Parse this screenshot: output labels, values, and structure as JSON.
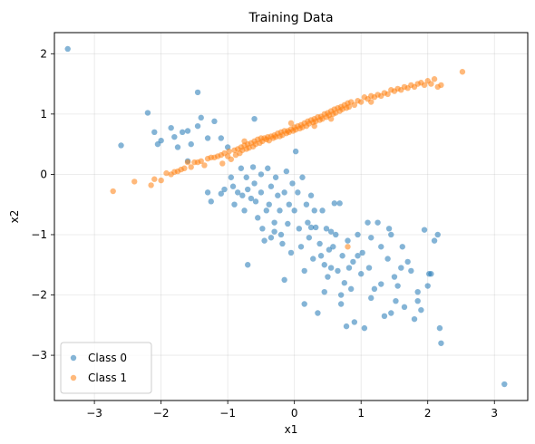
{
  "chart_data": {
    "type": "scatter",
    "title": "Training Data",
    "xlabel": "x1",
    "ylabel": "x2",
    "xlim": [
      -3.6,
      3.5
    ],
    "ylim": [
      -3.75,
      2.35
    ],
    "xticks": [
      -3,
      -2,
      -1,
      0,
      1,
      2,
      3
    ],
    "yticks": [
      -3,
      -2,
      -1,
      0,
      1,
      2
    ],
    "grid": true,
    "legend_position": "lower-left",
    "series": [
      {
        "name": "Class 0",
        "color": "#1f77b4",
        "points": [
          [
            -3.4,
            2.08
          ],
          [
            -2.6,
            0.48
          ],
          [
            -2.2,
            1.02
          ],
          [
            -2.1,
            0.7
          ],
          [
            -2.05,
            0.5
          ],
          [
            -2.0,
            0.56
          ],
          [
            -1.85,
            0.77
          ],
          [
            -1.8,
            0.62
          ],
          [
            -1.75,
            0.45
          ],
          [
            -1.68,
            0.7
          ],
          [
            -1.6,
            0.72
          ],
          [
            -1.55,
            0.5
          ],
          [
            -1.45,
            1.36
          ],
          [
            -1.4,
            0.94
          ],
          [
            -1.45,
            0.8
          ],
          [
            -1.3,
            0.6
          ],
          [
            -1.2,
            0.88
          ],
          [
            -1.1,
            0.6
          ],
          [
            -1.0,
            0.45
          ],
          [
            -1.6,
            0.22
          ],
          [
            -1.3,
            -0.3
          ],
          [
            -1.25,
            -0.45
          ],
          [
            -1.1,
            -0.32
          ],
          [
            -1.05,
            -0.25
          ],
          [
            -0.95,
            -0.05
          ],
          [
            -0.92,
            -0.2
          ],
          [
            -0.9,
            -0.5
          ],
          [
            -0.85,
            -0.3
          ],
          [
            -0.8,
            0.1
          ],
          [
            -0.78,
            -0.35
          ],
          [
            -0.75,
            -0.6
          ],
          [
            -0.72,
            -0.05
          ],
          [
            -0.7,
            -0.25
          ],
          [
            -0.65,
            -0.4
          ],
          [
            -0.6,
            0.92
          ],
          [
            -0.62,
            0.12
          ],
          [
            -0.6,
            -0.15
          ],
          [
            -0.58,
            -0.45
          ],
          [
            -0.55,
            -0.72
          ],
          [
            -0.5,
            0.0
          ],
          [
            -0.5,
            -0.3
          ],
          [
            -0.48,
            -0.9
          ],
          [
            -0.45,
            -1.1
          ],
          [
            -0.42,
            -0.6
          ],
          [
            -0.4,
            0.1
          ],
          [
            -0.38,
            -0.5
          ],
          [
            -0.35,
            -0.2
          ],
          [
            -0.3,
            -0.8
          ],
          [
            -0.28,
            -0.05
          ],
          [
            -0.25,
            -0.35
          ],
          [
            -0.22,
            -0.6
          ],
          [
            -0.2,
            -1.0
          ],
          [
            -0.18,
            -1.15
          ],
          [
            -0.15,
            -0.3
          ],
          [
            -0.12,
            0.05
          ],
          [
            -0.1,
            -0.82
          ],
          [
            -0.08,
            -0.5
          ],
          [
            -0.05,
            -1.3
          ],
          [
            -0.03,
            -0.15
          ],
          [
            0.0,
            -0.6
          ],
          [
            0.02,
            0.38
          ],
          [
            0.05,
            -0.3
          ],
          [
            0.07,
            -0.9
          ],
          [
            0.1,
            -1.2
          ],
          [
            0.12,
            -0.05
          ],
          [
            0.15,
            -1.6
          ],
          [
            0.18,
            -0.5
          ],
          [
            0.2,
            -0.8
          ],
          [
            0.22,
            -1.05
          ],
          [
            0.25,
            -0.35
          ],
          [
            0.28,
            -1.4
          ],
          [
            0.3,
            -0.6
          ],
          [
            0.32,
            -0.88
          ],
          [
            0.35,
            -2.3
          ],
          [
            0.38,
            -1.15
          ],
          [
            0.4,
            -1.35
          ],
          [
            0.42,
            -0.6
          ],
          [
            0.45,
            -1.5
          ],
          [
            0.48,
            -0.9
          ],
          [
            0.5,
            -1.7
          ],
          [
            0.52,
            -1.25
          ],
          [
            0.55,
            -1.55
          ],
          [
            0.58,
            -1.2
          ],
          [
            0.6,
            -0.48
          ],
          [
            0.62,
            -1.0
          ],
          [
            0.65,
            -1.6
          ],
          [
            0.68,
            -0.48
          ],
          [
            0.7,
            -2.0
          ],
          [
            0.72,
            -1.35
          ],
          [
            0.75,
            -1.8
          ],
          [
            0.78,
            -2.52
          ],
          [
            0.8,
            -1.1
          ],
          [
            0.82,
            -1.55
          ],
          [
            0.85,
            -1.9
          ],
          [
            0.88,
            -1.45
          ],
          [
            0.9,
            -2.45
          ],
          [
            0.95,
            -1.0
          ],
          [
            1.0,
            -1.65
          ],
          [
            1.02,
            -1.3
          ],
          [
            1.05,
            -2.55
          ],
          [
            1.1,
            -0.8
          ],
          [
            1.12,
            -1.55
          ],
          [
            1.15,
            -2.05
          ],
          [
            1.2,
            -1.9
          ],
          [
            1.25,
            -0.8
          ],
          [
            1.3,
            -1.2
          ],
          [
            1.35,
            -2.35
          ],
          [
            1.4,
            -1.4
          ],
          [
            1.42,
            -0.9
          ],
          [
            1.45,
            -1.0
          ],
          [
            1.5,
            -1.7
          ],
          [
            1.52,
            -2.1
          ],
          [
            1.55,
            -1.85
          ],
          [
            1.6,
            -1.55
          ],
          [
            1.65,
            -2.2
          ],
          [
            1.7,
            -1.45
          ],
          [
            1.75,
            -1.6
          ],
          [
            1.8,
            -2.4
          ],
          [
            1.85,
            -2.1
          ],
          [
            1.9,
            -2.25
          ],
          [
            1.95,
            -0.92
          ],
          [
            2.0,
            -1.85
          ],
          [
            2.05,
            -1.65
          ],
          [
            2.1,
            -1.1
          ],
          [
            2.15,
            -1.0
          ],
          [
            2.18,
            -2.55
          ],
          [
            2.2,
            -2.8
          ],
          [
            3.15,
            -3.48
          ],
          [
            -0.35,
            -1.05
          ],
          [
            0.25,
            -0.88
          ],
          [
            1.3,
            -1.82
          ],
          [
            0.45,
            -1.95
          ],
          [
            -0.7,
            -1.5
          ],
          [
            1.62,
            -1.2
          ],
          [
            0.95,
            -1.35
          ],
          [
            1.85,
            -1.95
          ],
          [
            0.15,
            -2.15
          ],
          [
            -0.15,
            -1.75
          ],
          [
            1.15,
            -1.05
          ],
          [
            0.55,
            -0.95
          ],
          [
            -0.3,
            -0.95
          ],
          [
            1.45,
            -2.3
          ],
          [
            2.02,
            -1.65
          ],
          [
            0.7,
            -2.15
          ]
        ]
      },
      {
        "name": "Class 1",
        "color": "#ff7f0e",
        "points": [
          [
            -2.72,
            -0.28
          ],
          [
            -2.4,
            -0.12
          ],
          [
            -2.15,
            -0.18
          ],
          [
            -2.1,
            -0.08
          ],
          [
            -2.0,
            -0.1
          ],
          [
            -1.92,
            0.02
          ],
          [
            -1.85,
            0.0
          ],
          [
            -1.8,
            0.04
          ],
          [
            -1.75,
            0.05
          ],
          [
            -1.7,
            0.08
          ],
          [
            -1.65,
            0.1
          ],
          [
            -1.6,
            0.2
          ],
          [
            -1.55,
            0.12
          ],
          [
            -1.5,
            0.2
          ],
          [
            -1.45,
            0.2
          ],
          [
            -1.4,
            0.22
          ],
          [
            -1.35,
            0.15
          ],
          [
            -1.3,
            0.26
          ],
          [
            -1.25,
            0.28
          ],
          [
            -1.2,
            0.28
          ],
          [
            -1.15,
            0.3
          ],
          [
            -1.1,
            0.32
          ],
          [
            -1.08,
            0.18
          ],
          [
            -1.05,
            0.35
          ],
          [
            -1.0,
            0.3
          ],
          [
            -0.98,
            0.38
          ],
          [
            -0.95,
            0.25
          ],
          [
            -0.9,
            0.4
          ],
          [
            -0.88,
            0.32
          ],
          [
            -0.85,
            0.42
          ],
          [
            -0.82,
            0.35
          ],
          [
            -0.8,
            0.45
          ],
          [
            -0.78,
            0.4
          ],
          [
            -0.75,
            0.48
          ],
          [
            -0.72,
            0.42
          ],
          [
            -0.7,
            0.5
          ],
          [
            -0.68,
            0.44
          ],
          [
            -0.65,
            0.52
          ],
          [
            -0.62,
            0.46
          ],
          [
            -0.6,
            0.55
          ],
          [
            -0.58,
            0.5
          ],
          [
            -0.55,
            0.58
          ],
          [
            -0.52,
            0.52
          ],
          [
            -0.5,
            0.6
          ],
          [
            -0.48,
            0.55
          ],
          [
            -0.45,
            0.6
          ],
          [
            -0.42,
            0.58
          ],
          [
            -0.4,
            0.62
          ],
          [
            -0.38,
            0.56
          ],
          [
            -0.35,
            0.63
          ],
          [
            -0.32,
            0.6
          ],
          [
            -0.3,
            0.65
          ],
          [
            -0.28,
            0.62
          ],
          [
            -0.25,
            0.68
          ],
          [
            -0.22,
            0.63
          ],
          [
            -0.2,
            0.7
          ],
          [
            -0.18,
            0.65
          ],
          [
            -0.15,
            0.72
          ],
          [
            -0.12,
            0.68
          ],
          [
            -0.1,
            0.72
          ],
          [
            -0.08,
            0.7
          ],
          [
            -0.05,
            0.75
          ],
          [
            -0.02,
            0.72
          ],
          [
            0.0,
            0.78
          ],
          [
            0.02,
            0.74
          ],
          [
            0.05,
            0.8
          ],
          [
            0.08,
            0.76
          ],
          [
            0.1,
            0.82
          ],
          [
            0.12,
            0.78
          ],
          [
            0.15,
            0.85
          ],
          [
            0.18,
            0.8
          ],
          [
            0.2,
            0.88
          ],
          [
            0.22,
            0.84
          ],
          [
            0.25,
            0.9
          ],
          [
            0.28,
            0.86
          ],
          [
            0.3,
            0.92
          ],
          [
            0.32,
            0.88
          ],
          [
            0.35,
            0.95
          ],
          [
            0.38,
            0.9
          ],
          [
            0.4,
            0.96
          ],
          [
            0.42,
            0.92
          ],
          [
            0.45,
            1.0
          ],
          [
            0.48,
            0.95
          ],
          [
            0.5,
            1.02
          ],
          [
            0.52,
            0.98
          ],
          [
            0.55,
            1.05
          ],
          [
            0.58,
            1.0
          ],
          [
            0.6,
            1.08
          ],
          [
            0.62,
            1.02
          ],
          [
            0.65,
            1.1
          ],
          [
            0.68,
            1.05
          ],
          [
            0.7,
            1.12
          ],
          [
            0.72,
            1.08
          ],
          [
            0.75,
            1.15
          ],
          [
            0.78,
            1.1
          ],
          [
            0.8,
            1.18
          ],
          [
            0.82,
            1.12
          ],
          [
            0.85,
            1.2
          ],
          [
            0.9,
            1.15
          ],
          [
            0.95,
            1.22
          ],
          [
            1.0,
            1.2
          ],
          [
            1.05,
            1.28
          ],
          [
            1.1,
            1.25
          ],
          [
            1.15,
            1.3
          ],
          [
            1.2,
            1.28
          ],
          [
            1.25,
            1.32
          ],
          [
            1.3,
            1.3
          ],
          [
            1.35,
            1.35
          ],
          [
            1.4,
            1.33
          ],
          [
            1.45,
            1.4
          ],
          [
            1.5,
            1.38
          ],
          [
            1.55,
            1.42
          ],
          [
            1.6,
            1.4
          ],
          [
            1.65,
            1.45
          ],
          [
            1.7,
            1.43
          ],
          [
            1.75,
            1.48
          ],
          [
            1.8,
            1.45
          ],
          [
            1.85,
            1.5
          ],
          [
            1.9,
            1.52
          ],
          [
            1.95,
            1.48
          ],
          [
            2.0,
            1.55
          ],
          [
            2.05,
            1.5
          ],
          [
            2.1,
            1.58
          ],
          [
            2.15,
            1.45
          ],
          [
            2.2,
            1.48
          ],
          [
            2.52,
            1.7
          ],
          [
            0.8,
            -1.2
          ],
          [
            -0.05,
            0.85
          ],
          [
            0.3,
            0.8
          ],
          [
            1.15,
            1.2
          ],
          [
            -0.75,
            0.55
          ],
          [
            0.55,
            0.92
          ]
        ]
      }
    ]
  }
}
